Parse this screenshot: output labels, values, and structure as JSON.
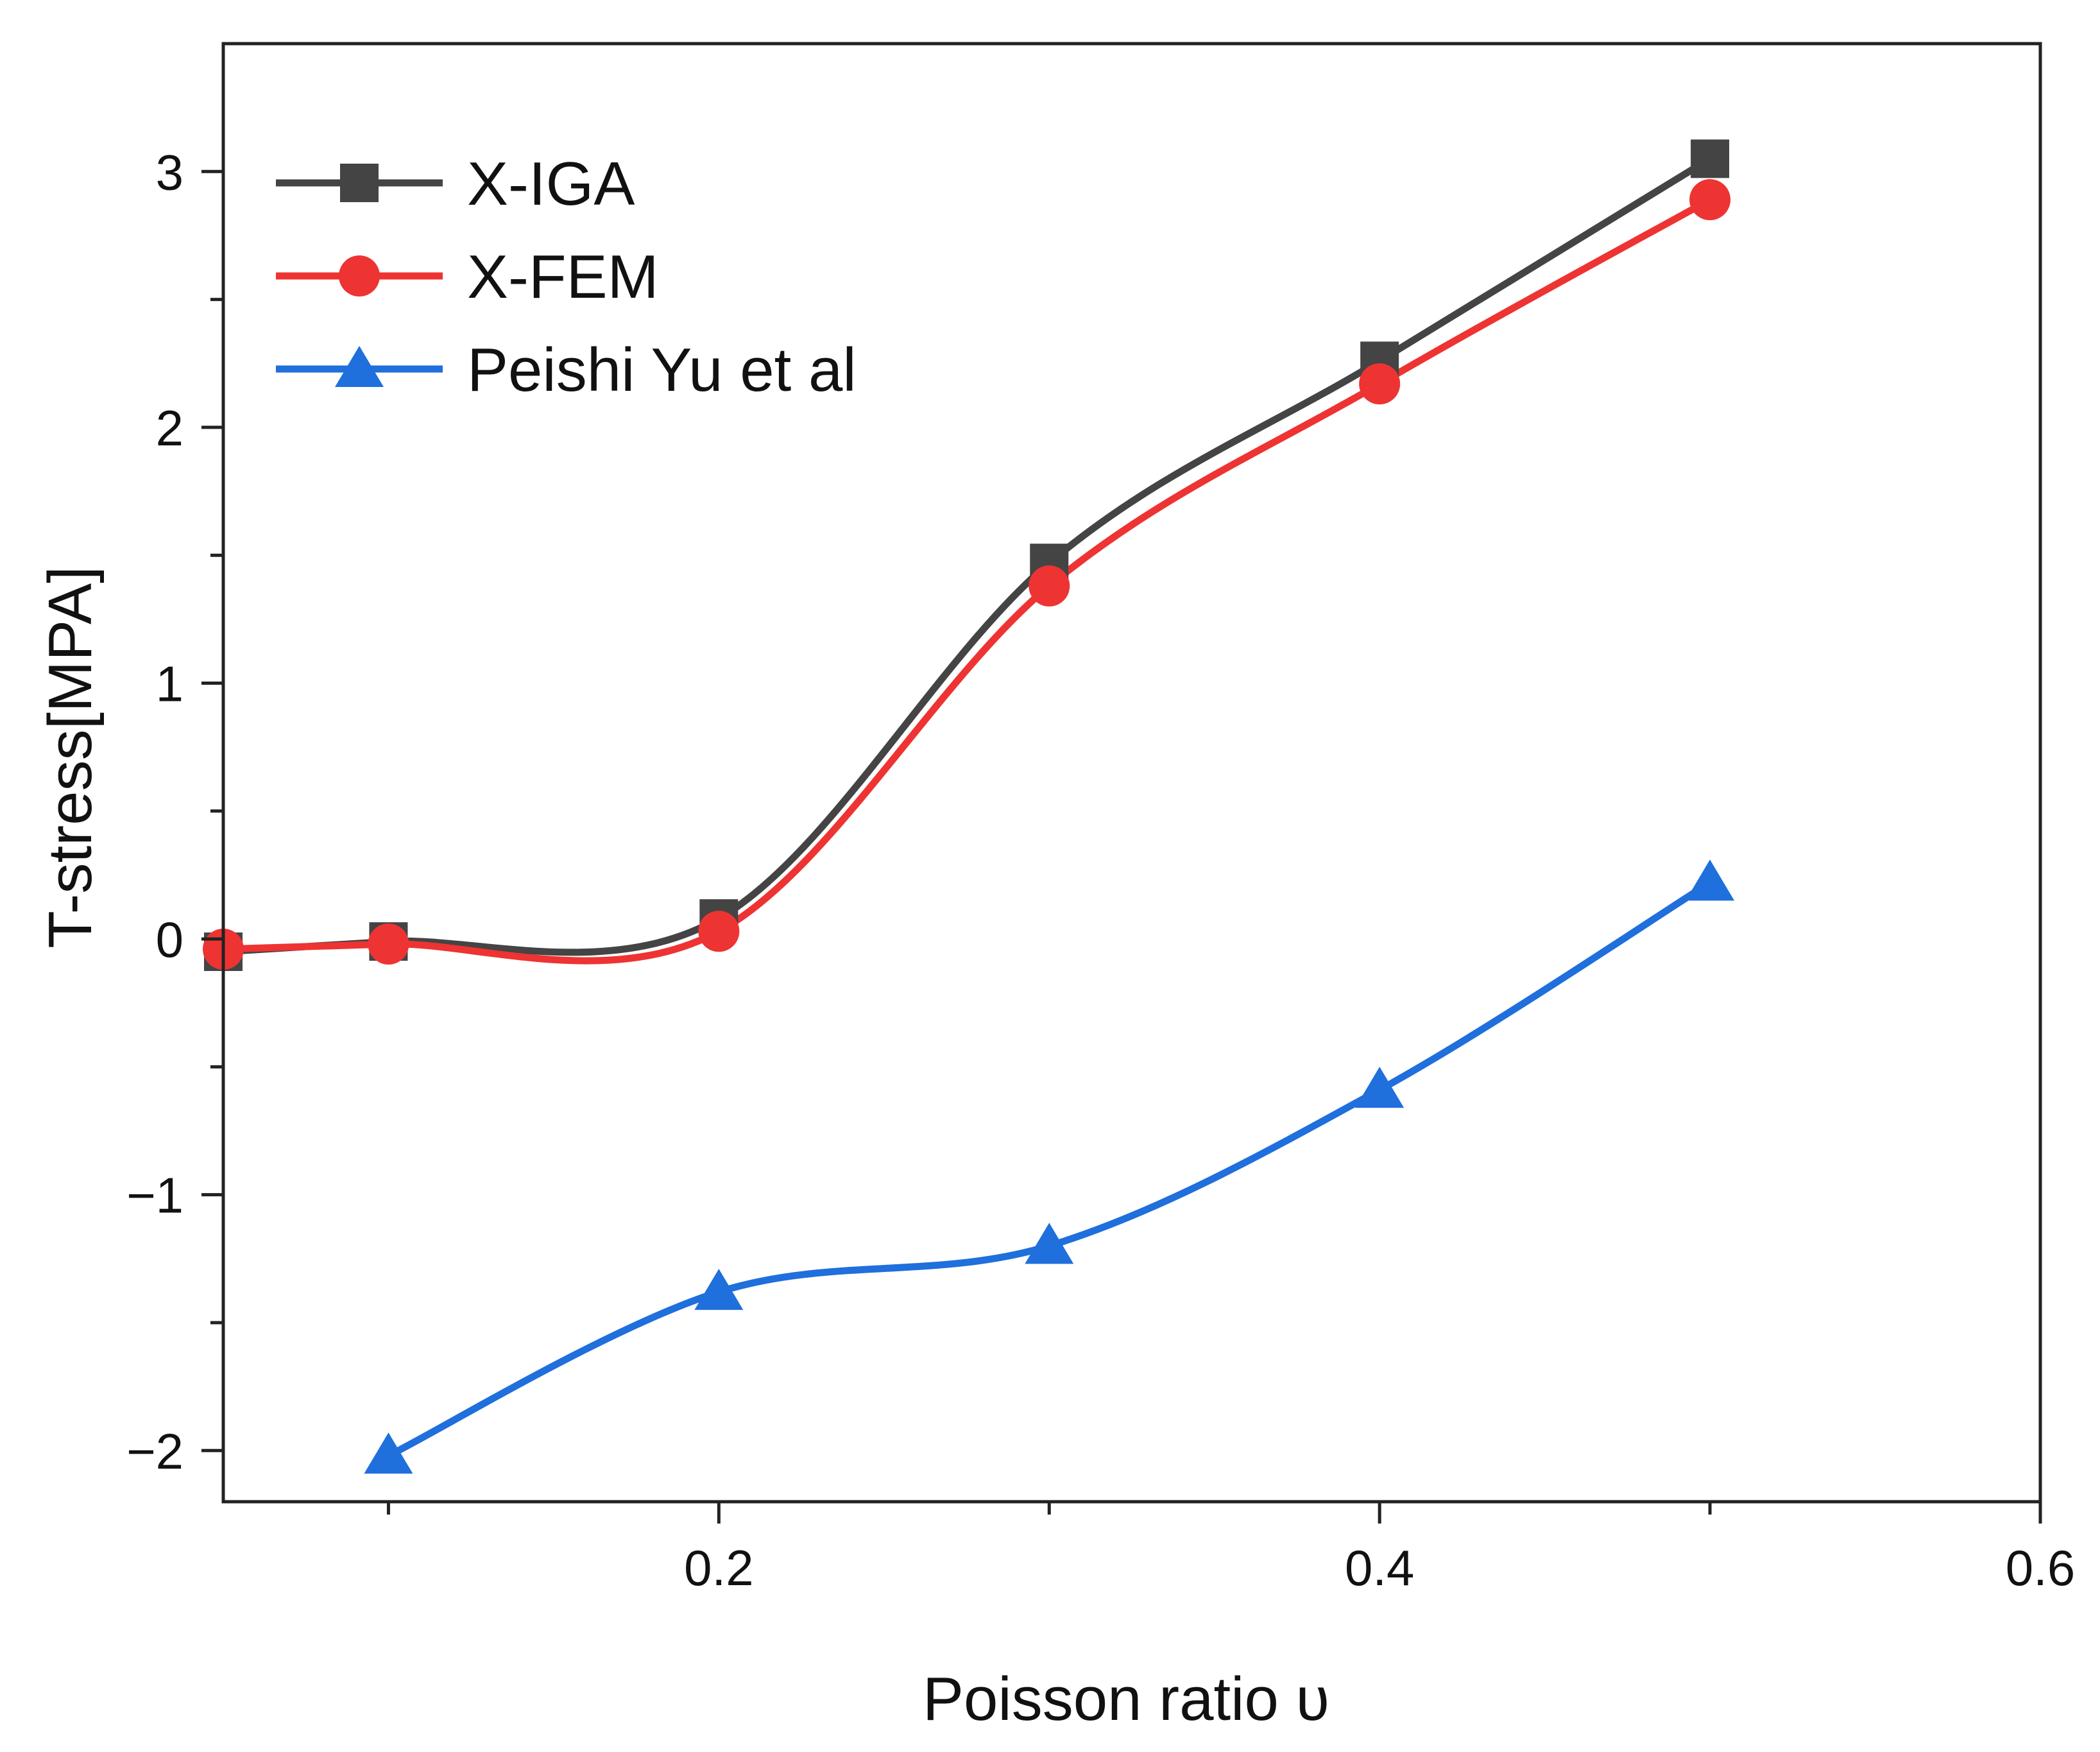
{
  "chart_data": {
    "type": "line",
    "title": "",
    "xlabel": "Poisson ratio υ",
    "ylabel": "T-stress[MPA]",
    "xlim": [
      0.05,
      0.6
    ],
    "ylim": [
      -2.2,
      3.5
    ],
    "x_ticks": [
      {
        "value": 0.2,
        "label": "0.2"
      },
      {
        "value": 0.4,
        "label": "0.4"
      },
      {
        "value": 0.6,
        "label": "0.6"
      }
    ],
    "y_ticks": [
      {
        "value": -2,
        "label": "−2"
      },
      {
        "value": -1,
        "label": "−1"
      },
      {
        "value": 0,
        "label": "0"
      },
      {
        "value": 1,
        "label": "1"
      },
      {
        "value": 2,
        "label": "2"
      },
      {
        "value": 3,
        "label": "3"
      }
    ],
    "grid": false,
    "legend_position": "top-left",
    "series": [
      {
        "name": "X-IGA",
        "color": "#444444",
        "marker": "square",
        "x": [
          0.05,
          0.1,
          0.2,
          0.3,
          0.4,
          0.5
        ],
        "y": [
          -0.05,
          -0.01,
          0.08,
          1.47,
          2.26,
          3.05
        ]
      },
      {
        "name": "X-FEM",
        "color": "#ee3333",
        "marker": "circle",
        "x": [
          0.05,
          0.1,
          0.2,
          0.3,
          0.4,
          0.5
        ],
        "y": [
          -0.04,
          -0.02,
          0.03,
          1.38,
          2.17,
          2.89
        ]
      },
      {
        "name": "Peishi Yu et al",
        "color": "#1f6fdc",
        "marker": "triangle",
        "x": [
          0.1,
          0.2,
          0.3,
          0.4,
          0.5
        ],
        "y": [
          -2.02,
          -1.38,
          -1.2,
          -0.59,
          0.22
        ]
      }
    ]
  }
}
